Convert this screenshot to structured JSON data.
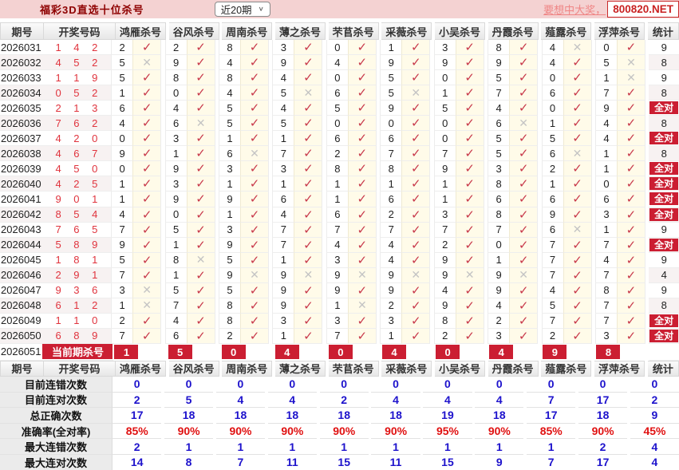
{
  "topbar": {
    "title": "福彩3D直选十位杀号",
    "range_select": "近20期",
    "promo_text": "要想中大奖，",
    "site": "800820.NET"
  },
  "columns": {
    "period": "期号",
    "draw": "开奖号码",
    "stat": "统计"
  },
  "experts": [
    "鸿雁杀号",
    "谷风杀号",
    "周南杀号",
    "薄之杀号",
    "芣苢杀号",
    "采薇杀号",
    "小吴杀号",
    "丹霞杀号",
    "薤露杀号",
    "浮萍杀号"
  ],
  "glyphs": {
    "check": "✓",
    "cross": "✕",
    "chevron": "∨"
  },
  "colors": {
    "accent_red": "#cb1e32",
    "draw_red": "#e0333d",
    "stat_blue": "#1d12cc",
    "pct_red": "#e01111",
    "topbar_pink": "#f4d2d2"
  },
  "rows": [
    {
      "period": "2026031",
      "draw": "142",
      "kills": [
        "2",
        "2",
        "8",
        "3",
        "0",
        "1",
        "3",
        "8",
        "4",
        "0"
      ],
      "miss": [
        8
      ],
      "stat": "9"
    },
    {
      "period": "2026032",
      "draw": "452",
      "kills": [
        "5",
        "9",
        "4",
        "9",
        "4",
        "9",
        "9",
        "9",
        "4",
        "5"
      ],
      "miss": [
        0,
        9
      ],
      "stat": "8"
    },
    {
      "period": "2026033",
      "draw": "119",
      "kills": [
        "5",
        "8",
        "8",
        "4",
        "0",
        "5",
        "0",
        "5",
        "0",
        "1"
      ],
      "miss": [
        9
      ],
      "stat": "9"
    },
    {
      "period": "2026034",
      "draw": "052",
      "kills": [
        "1",
        "0",
        "4",
        "5",
        "6",
        "5",
        "1",
        "7",
        "6",
        "7"
      ],
      "miss": [
        3,
        5
      ],
      "stat": "8"
    },
    {
      "period": "2026035",
      "draw": "213",
      "kills": [
        "6",
        "4",
        "5",
        "4",
        "5",
        "9",
        "5",
        "4",
        "0",
        "9"
      ],
      "miss": [],
      "stat": "全对"
    },
    {
      "period": "2026036",
      "draw": "762",
      "kills": [
        "4",
        "6",
        "5",
        "5",
        "0",
        "0",
        "0",
        "6",
        "1",
        "4"
      ],
      "miss": [
        1,
        7
      ],
      "stat": "8"
    },
    {
      "period": "2026037",
      "draw": "420",
      "kills": [
        "0",
        "3",
        "1",
        "1",
        "6",
        "6",
        "0",
        "5",
        "5",
        "4"
      ],
      "miss": [],
      "stat": "全对"
    },
    {
      "period": "2026038",
      "draw": "467",
      "kills": [
        "9",
        "1",
        "6",
        "7",
        "2",
        "7",
        "7",
        "5",
        "6",
        "1"
      ],
      "miss": [
        2,
        8
      ],
      "stat": "8"
    },
    {
      "period": "2026039",
      "draw": "450",
      "kills": [
        "0",
        "9",
        "3",
        "3",
        "8",
        "8",
        "9",
        "3",
        "2",
        "1"
      ],
      "miss": [],
      "stat": "全对"
    },
    {
      "period": "2026040",
      "draw": "425",
      "kills": [
        "1",
        "3",
        "1",
        "1",
        "1",
        "1",
        "1",
        "8",
        "1",
        "0"
      ],
      "miss": [],
      "stat": "全对"
    },
    {
      "period": "2026041",
      "draw": "901",
      "kills": [
        "1",
        "9",
        "9",
        "6",
        "1",
        "6",
        "1",
        "6",
        "6",
        "6"
      ],
      "miss": [],
      "stat": "全对"
    },
    {
      "period": "2026042",
      "draw": "854",
      "kills": [
        "4",
        "0",
        "1",
        "4",
        "6",
        "2",
        "3",
        "8",
        "9",
        "3"
      ],
      "miss": [],
      "stat": "全对"
    },
    {
      "period": "2026043",
      "draw": "765",
      "kills": [
        "7",
        "5",
        "3",
        "7",
        "7",
        "7",
        "7",
        "7",
        "6",
        "1"
      ],
      "miss": [
        8
      ],
      "stat": "9"
    },
    {
      "period": "2026044",
      "draw": "589",
      "kills": [
        "9",
        "1",
        "9",
        "7",
        "4",
        "4",
        "2",
        "0",
        "7",
        "7"
      ],
      "miss": [],
      "stat": "全对"
    },
    {
      "period": "2026045",
      "draw": "181",
      "kills": [
        "5",
        "8",
        "5",
        "1",
        "3",
        "4",
        "9",
        "1",
        "7",
        "4"
      ],
      "miss": [
        1
      ],
      "stat": "9"
    },
    {
      "period": "2026046",
      "draw": "291",
      "kills": [
        "7",
        "1",
        "9",
        "9",
        "9",
        "9",
        "9",
        "9",
        "7",
        "7"
      ],
      "miss": [
        2,
        3,
        4,
        5,
        6,
        7
      ],
      "stat": "4"
    },
    {
      "period": "2026047",
      "draw": "936",
      "kills": [
        "3",
        "5",
        "5",
        "9",
        "9",
        "9",
        "4",
        "9",
        "4",
        "8"
      ],
      "miss": [
        0
      ],
      "stat": "9"
    },
    {
      "period": "2026048",
      "draw": "612",
      "kills": [
        "1",
        "7",
        "8",
        "9",
        "1",
        "2",
        "9",
        "4",
        "5",
        "7"
      ],
      "miss": [
        0,
        4
      ],
      "stat": "8"
    },
    {
      "period": "2026049",
      "draw": "110",
      "kills": [
        "2",
        "4",
        "8",
        "3",
        "3",
        "3",
        "8",
        "2",
        "7",
        "7"
      ],
      "miss": [],
      "stat": "全对"
    },
    {
      "period": "2026050",
      "draw": "689",
      "kills": [
        "7",
        "6",
        "2",
        "1",
        "7",
        "1",
        "2",
        "3",
        "2",
        "3"
      ],
      "miss": [],
      "stat": "全对"
    }
  ],
  "current": {
    "period": "2026051",
    "label": "当前期杀号",
    "kills": [
      "1",
      "5",
      "0",
      "4",
      "0",
      "4",
      "0",
      "4",
      "9",
      "8"
    ],
    "stat": ""
  },
  "stats": [
    {
      "label": "目前连错次数",
      "values": [
        "0",
        "0",
        "0",
        "0",
        "0",
        "0",
        "0",
        "0",
        "0",
        "0"
      ],
      "total": "0",
      "style": "blue"
    },
    {
      "label": "目前连对次数",
      "values": [
        "2",
        "5",
        "4",
        "4",
        "2",
        "4",
        "4",
        "4",
        "7",
        "17"
      ],
      "total": "2",
      "style": "blue"
    },
    {
      "label": "总正确次数",
      "values": [
        "17",
        "18",
        "18",
        "18",
        "18",
        "18",
        "19",
        "18",
        "17",
        "18"
      ],
      "total": "9",
      "style": "blue"
    },
    {
      "label": "准确率(全对率)",
      "values": [
        "85%",
        "90%",
        "90%",
        "90%",
        "90%",
        "90%",
        "95%",
        "90%",
        "85%",
        "90%"
      ],
      "total": "45%",
      "style": "red"
    },
    {
      "label": "最大连错次数",
      "values": [
        "2",
        "1",
        "1",
        "1",
        "1",
        "1",
        "1",
        "1",
        "1",
        "2"
      ],
      "total": "4",
      "style": "blue"
    },
    {
      "label": "最大连对次数",
      "values": [
        "14",
        "8",
        "7",
        "11",
        "15",
        "11",
        "15",
        "9",
        "7",
        "17"
      ],
      "total": "4",
      "style": "blue"
    }
  ]
}
